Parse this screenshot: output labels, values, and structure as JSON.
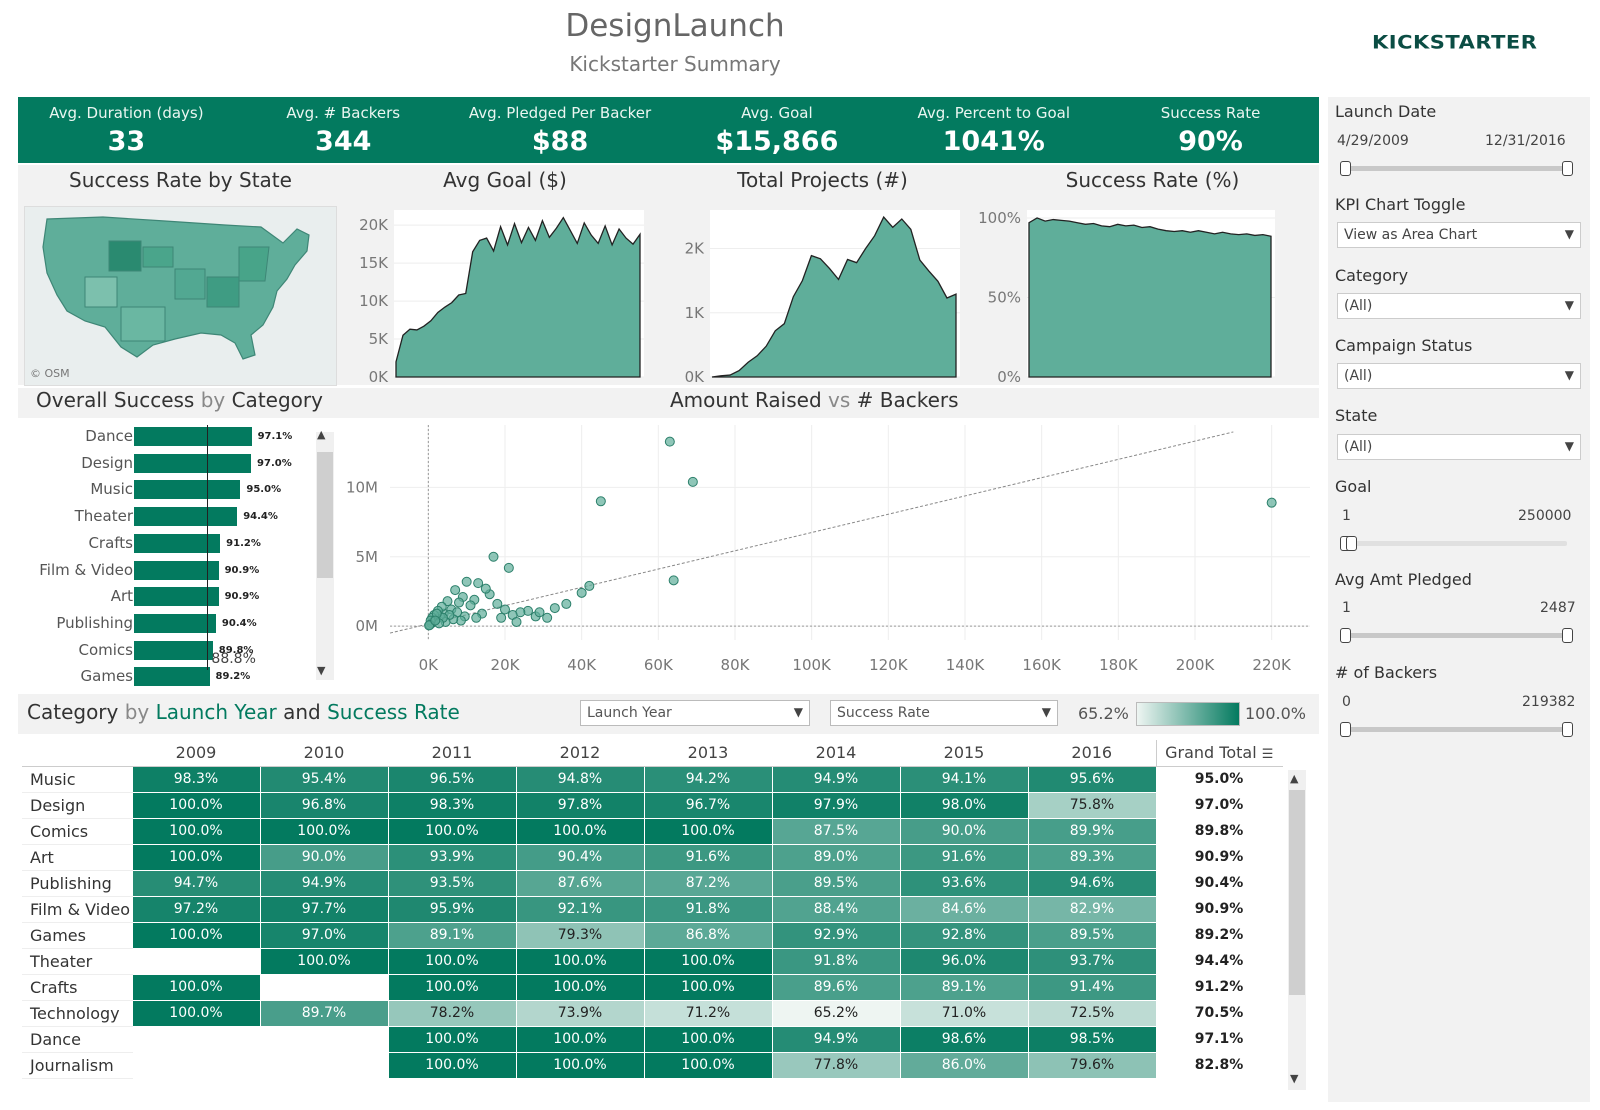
{
  "header": {
    "title": "DesignLaunch",
    "subtitle": "Kickstarter Summary",
    "logo_text": "KICKSTARTER"
  },
  "colors": {
    "primary": "#037a5f",
    "area_fill": "#5fae9a",
    "light": "#eef5f2"
  },
  "kpis": [
    {
      "label": "Avg. Duration (days)",
      "value": "33"
    },
    {
      "label": "Avg. # Backers",
      "value": "344"
    },
    {
      "label": "Avg. Pledged Per Backer",
      "value": "$88"
    },
    {
      "label": "Avg. Goal",
      "value": "$15,866"
    },
    {
      "label": "Avg. Percent to Goal",
      "value": "1041%"
    },
    {
      "label": "Success Rate",
      "value": "90%"
    }
  ],
  "panels": {
    "map_title": "Success Rate by State",
    "map_credit": "© OSM",
    "avg_goal_title": "Avg Goal ($)",
    "total_projects_title": "Total Projects (#)",
    "success_rate_title": "Success Rate (%)"
  },
  "sections": {
    "category_title_a": "Overall Success",
    "category_title_b": " by ",
    "category_title_c": "Category",
    "scatter_title_a": "Amount Raised",
    "scatter_title_b": " vs ",
    "scatter_title_c": "# Backers",
    "heat_title_a": "Category",
    "heat_title_b": " by ",
    "heat_title_c": "Launch Year",
    "heat_title_d": " and ",
    "heat_title_e": "Success Rate",
    "heat_dd1": "Launch Year",
    "heat_dd2": "Success Rate",
    "legend_min": "65.2%",
    "legend_max": "100.0%"
  },
  "chart_data": [
    {
      "type": "area",
      "id": "avg_goal",
      "title": "Avg Goal ($)",
      "ylim": [
        0,
        22000
      ],
      "yticks": [
        "20K",
        "15K",
        "10K",
        "5K",
        "0K"
      ],
      "values": [
        2000,
        5500,
        6300,
        6200,
        6700,
        7400,
        8500,
        9200,
        9800,
        10800,
        11000,
        16500,
        18000,
        18300,
        16600,
        19800,
        17400,
        20200,
        17700,
        19700,
        18000,
        20600,
        18400,
        19600,
        21000,
        19300,
        17600,
        20300,
        18700,
        17600,
        19900,
        17400,
        19500,
        18300,
        17500,
        18800
      ]
    },
    {
      "type": "area",
      "id": "total_projects",
      "title": "Total Projects (#)",
      "ylim": [
        0,
        2600
      ],
      "yticks": [
        "2K",
        "1K",
        "0K"
      ],
      "values": [
        0,
        20,
        30,
        100,
        230,
        330,
        480,
        720,
        830,
        1250,
        1500,
        1890,
        1840,
        1690,
        1520,
        1830,
        1780,
        2000,
        2200,
        2490,
        2330,
        2460,
        2300,
        1820,
        1650,
        1490,
        1230,
        1290
      ]
    },
    {
      "type": "area",
      "id": "success_rate",
      "title": "Success Rate (%)",
      "ylim": [
        0,
        105
      ],
      "yticks": [
        "100%",
        "50%",
        "0%"
      ],
      "values": [
        97,
        100,
        98,
        99,
        98.5,
        98,
        97,
        96,
        96.5,
        95,
        94.5,
        96,
        95,
        95.5,
        94,
        94.5,
        93,
        92,
        91.5,
        92,
        91,
        92,
        91,
        90,
        91,
        90,
        89.5,
        90,
        89,
        89.5,
        88.5
      ]
    },
    {
      "type": "bar",
      "id": "category_success",
      "title": "Overall Success by Category",
      "categories": [
        "Dance",
        "Design",
        "Music",
        "Theater",
        "Crafts",
        "Film & Video",
        "Art",
        "Publishing",
        "Comics",
        "Games"
      ],
      "values": [
        97.1,
        97.0,
        95.0,
        94.4,
        91.2,
        90.9,
        90.9,
        90.4,
        89.8,
        89.2
      ],
      "labels": [
        "97.1%",
        "97.0%",
        "95.0%",
        "94.4%",
        "91.2%",
        "90.9%",
        "90.9%",
        "90.4%",
        "89.8%",
        "89.2%"
      ],
      "reference_label": "88.8%",
      "reference": 88.8
    },
    {
      "type": "scatter",
      "id": "raised_vs_backers",
      "title": "Amount Raised vs # Backers",
      "xlim": [
        -10000,
        230000
      ],
      "ylim": [
        -1000000,
        14500000
      ],
      "xticks": [
        "0K",
        "20K",
        "40K",
        "60K",
        "80K",
        "100K",
        "120K",
        "140K",
        "160K",
        "180K",
        "200K",
        "220K"
      ],
      "yticks": [
        "10M",
        "5M",
        "0M"
      ],
      "points": [
        [
          63000,
          13300000
        ],
        [
          69000,
          10400000
        ],
        [
          45000,
          9000000
        ],
        [
          220000,
          8900000
        ],
        [
          17000,
          5000000
        ],
        [
          21000,
          4200000
        ],
        [
          64000,
          3300000
        ],
        [
          42000,
          2900000
        ],
        [
          40000,
          2400000
        ],
        [
          36000,
          1600000
        ],
        [
          33000,
          1300000
        ],
        [
          28000,
          700000
        ],
        [
          26000,
          1100000
        ],
        [
          24000,
          1000000
        ],
        [
          22000,
          800000
        ],
        [
          20000,
          1200000
        ],
        [
          18000,
          1600000
        ],
        [
          16000,
          2300000
        ],
        [
          15000,
          2700000
        ],
        [
          13000,
          3100000
        ],
        [
          12000,
          1900000
        ],
        [
          11000,
          1500000
        ],
        [
          10000,
          3200000
        ],
        [
          9000,
          2100000
        ],
        [
          8000,
          1700000
        ],
        [
          7000,
          2600000
        ],
        [
          6000,
          1200000
        ],
        [
          5000,
          1800000
        ],
        [
          4000,
          900000
        ],
        [
          3500,
          1400000
        ],
        [
          3000,
          700000
        ],
        [
          2500,
          1100000
        ],
        [
          2000,
          500000
        ],
        [
          1500,
          800000
        ],
        [
          1200,
          300000
        ],
        [
          1000,
          600000
        ],
        [
          800,
          200000
        ],
        [
          600,
          400000
        ],
        [
          400,
          100000
        ],
        [
          200,
          50000
        ],
        [
          14000,
          900000
        ],
        [
          12500,
          600000
        ],
        [
          9500,
          700000
        ],
        [
          8500,
          400000
        ],
        [
          7500,
          1000000
        ],
        [
          6500,
          500000
        ],
        [
          5500,
          800000
        ],
        [
          4500,
          300000
        ],
        [
          3800,
          600000
        ],
        [
          2800,
          200000
        ],
        [
          2200,
          900000
        ],
        [
          1800,
          400000
        ],
        [
          31000,
          600000
        ],
        [
          29000,
          1000000
        ],
        [
          19000,
          600000
        ],
        [
          23000,
          300000
        ]
      ],
      "trend": [
        [
          -10000,
          -500000
        ],
        [
          210000,
          14000000
        ]
      ]
    },
    {
      "type": "heatmap",
      "id": "category_year",
      "title": "Category by Launch Year and Success Rate",
      "columns": [
        "2009",
        "2010",
        "2011",
        "2012",
        "2013",
        "2014",
        "2015",
        "2016"
      ],
      "grand_total_label": "Grand Total",
      "vmin": 65.2,
      "vmax": 100,
      "rows": [
        {
          "name": "Music",
          "values": [
            98.3,
            95.4,
            96.5,
            94.8,
            94.2,
            94.9,
            94.1,
            95.6
          ],
          "labels": [
            "98.3%",
            "95.4%",
            "96.5%",
            "94.8%",
            "94.2%",
            "94.9%",
            "94.1%",
            "95.6%"
          ],
          "total": "95.0%"
        },
        {
          "name": "Design",
          "values": [
            100,
            96.8,
            98.3,
            97.8,
            96.7,
            97.9,
            98.0,
            75.8
          ],
          "labels": [
            "100.0%",
            "96.8%",
            "98.3%",
            "97.8%",
            "96.7%",
            "97.9%",
            "98.0%",
            "75.8%"
          ],
          "total": "97.0%"
        },
        {
          "name": "Comics",
          "values": [
            100,
            100,
            100,
            100,
            100,
            87.5,
            90.0,
            89.9
          ],
          "labels": [
            "100.0%",
            "100.0%",
            "100.0%",
            "100.0%",
            "100.0%",
            "87.5%",
            "90.0%",
            "89.9%"
          ],
          "total": "89.8%"
        },
        {
          "name": "Art",
          "values": [
            100,
            90.0,
            93.9,
            90.4,
            91.6,
            89.0,
            91.6,
            89.3
          ],
          "labels": [
            "100.0%",
            "90.0%",
            "93.9%",
            "90.4%",
            "91.6%",
            "89.0%",
            "91.6%",
            "89.3%"
          ],
          "total": "90.9%"
        },
        {
          "name": "Publishing",
          "values": [
            94.7,
            94.9,
            93.5,
            87.6,
            87.2,
            89.5,
            93.6,
            94.6
          ],
          "labels": [
            "94.7%",
            "94.9%",
            "93.5%",
            "87.6%",
            "87.2%",
            "89.5%",
            "93.6%",
            "94.6%"
          ],
          "total": "90.4%"
        },
        {
          "name": "Film & Video",
          "values": [
            97.2,
            97.7,
            95.9,
            92.1,
            91.8,
            88.4,
            84.6,
            82.9
          ],
          "labels": [
            "97.2%",
            "97.7%",
            "95.9%",
            "92.1%",
            "91.8%",
            "88.4%",
            "84.6%",
            "82.9%"
          ],
          "total": "90.9%"
        },
        {
          "name": "Games",
          "values": [
            100,
            97.0,
            89.1,
            79.3,
            86.8,
            92.9,
            92.8,
            89.5
          ],
          "labels": [
            "100.0%",
            "97.0%",
            "89.1%",
            "79.3%",
            "86.8%",
            "92.9%",
            "92.8%",
            "89.5%"
          ],
          "total": "89.2%"
        },
        {
          "name": "Theater",
          "values": [
            null,
            100,
            100,
            100,
            100,
            91.8,
            96.0,
            93.7
          ],
          "labels": [
            "",
            "100.0%",
            "100.0%",
            "100.0%",
            "100.0%",
            "91.8%",
            "96.0%",
            "93.7%"
          ],
          "total": "94.4%"
        },
        {
          "name": "Crafts",
          "values": [
            100,
            null,
            100,
            100,
            100,
            89.6,
            89.1,
            91.4
          ],
          "labels": [
            "100.0%",
            "",
            "100.0%",
            "100.0%",
            "100.0%",
            "89.6%",
            "89.1%",
            "91.4%"
          ],
          "total": "91.2%"
        },
        {
          "name": "Technology",
          "values": [
            100,
            89.7,
            78.2,
            73.9,
            71.2,
            65.2,
            71.0,
            72.5
          ],
          "labels": [
            "100.0%",
            "89.7%",
            "78.2%",
            "73.9%",
            "71.2%",
            "65.2%",
            "71.0%",
            "72.5%"
          ],
          "total": "70.5%"
        },
        {
          "name": "Dance",
          "values": [
            null,
            null,
            100,
            100,
            100,
            94.9,
            98.6,
            98.5
          ],
          "labels": [
            "",
            "",
            "100.0%",
            "100.0%",
            "100.0%",
            "94.9%",
            "98.6%",
            "98.5%"
          ],
          "total": "97.1%"
        },
        {
          "name": "Journalism",
          "values": [
            null,
            null,
            100,
            100,
            100,
            77.8,
            86.0,
            79.6
          ],
          "labels": [
            "",
            "",
            "100.0%",
            "100.0%",
            "100.0%",
            "77.8%",
            "86.0%",
            "79.6%"
          ],
          "total": "82.8%"
        }
      ]
    }
  ],
  "sidebar": {
    "launch_date_label": "Launch Date",
    "launch_date_min": "4/29/2009",
    "launch_date_max": "12/31/2016",
    "kpi_toggle_label": "KPI Chart Toggle",
    "kpi_toggle_value": "View as Area Chart",
    "category_label": "Category",
    "category_value": "(All)",
    "campaign_status_label": "Campaign Status",
    "campaign_status_value": "(All)",
    "state_label": "State",
    "state_value": "(All)",
    "goal_label": "Goal",
    "goal_min": "1",
    "goal_max": "250000",
    "avg_pledged_label": "Avg Amt Pledged",
    "avg_pledged_min": "1",
    "avg_pledged_max": "2487",
    "backers_label": "# of Backers",
    "backers_min": "0",
    "backers_max": "219382"
  }
}
